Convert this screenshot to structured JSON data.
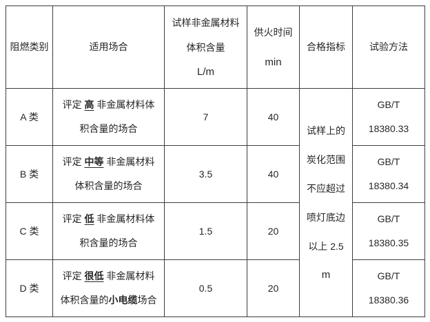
{
  "table": {
    "headers": {
      "category": "阻燃类别",
      "occasion": "适用场合",
      "volume_lines": [
        "试样非金属材料",
        "体积含量",
        "L/m"
      ],
      "fire_time_lines": [
        "供火时间",
        "min"
      ],
      "qualification": "合格指标",
      "method": "试验方法"
    },
    "qualification_lines": [
      "试样上的",
      "炭化范围",
      "不应超过",
      "喷灯底边",
      "以上 2.5",
      "m"
    ],
    "rows": [
      {
        "category": "A 类",
        "occasion_line1": [
          {
            "text": "评定 "
          },
          {
            "text": "高",
            "bold": true,
            "underline": true
          },
          {
            "text": " 非金属材料体"
          }
        ],
        "occasion_line2": [
          {
            "text": "积含量的场合"
          }
        ],
        "volume": "7",
        "fire_time": "40",
        "method_lines": [
          "GB/T",
          "18380.33"
        ]
      },
      {
        "category": "B 类",
        "occasion_line1": [
          {
            "text": "评定 "
          },
          {
            "text": "中等",
            "bold": true,
            "underline": true
          },
          {
            "text": " 非金属材料"
          }
        ],
        "occasion_line2": [
          {
            "text": "体积含量的场合"
          }
        ],
        "volume": "3.5",
        "fire_time": "40",
        "method_lines": [
          "GB/T",
          "18380.34"
        ]
      },
      {
        "category": "C 类",
        "occasion_line1": [
          {
            "text": "评定 "
          },
          {
            "text": "低",
            "bold": true,
            "underline": true
          },
          {
            "text": " 非金属材料体"
          }
        ],
        "occasion_line2": [
          {
            "text": "积含量的场合"
          }
        ],
        "volume": "1.5",
        "fire_time": "20",
        "method_lines": [
          "GB/T",
          "18380.35"
        ]
      },
      {
        "category": "D 类",
        "occasion_line1": [
          {
            "text": "评定 "
          },
          {
            "text": "很低",
            "bold": true,
            "underline": true
          },
          {
            "text": " 非金属材料"
          }
        ],
        "occasion_line2": [
          {
            "text": "体积含量的"
          },
          {
            "text": "小电缆",
            "bold": true
          },
          {
            "text": "场合"
          }
        ],
        "volume": "0.5",
        "fire_time": "20",
        "method_lines": [
          "GB/T",
          "18380.36"
        ]
      }
    ]
  },
  "colors": {
    "border": "#3c3c3c",
    "text": "#262626",
    "background": "#ffffff"
  }
}
